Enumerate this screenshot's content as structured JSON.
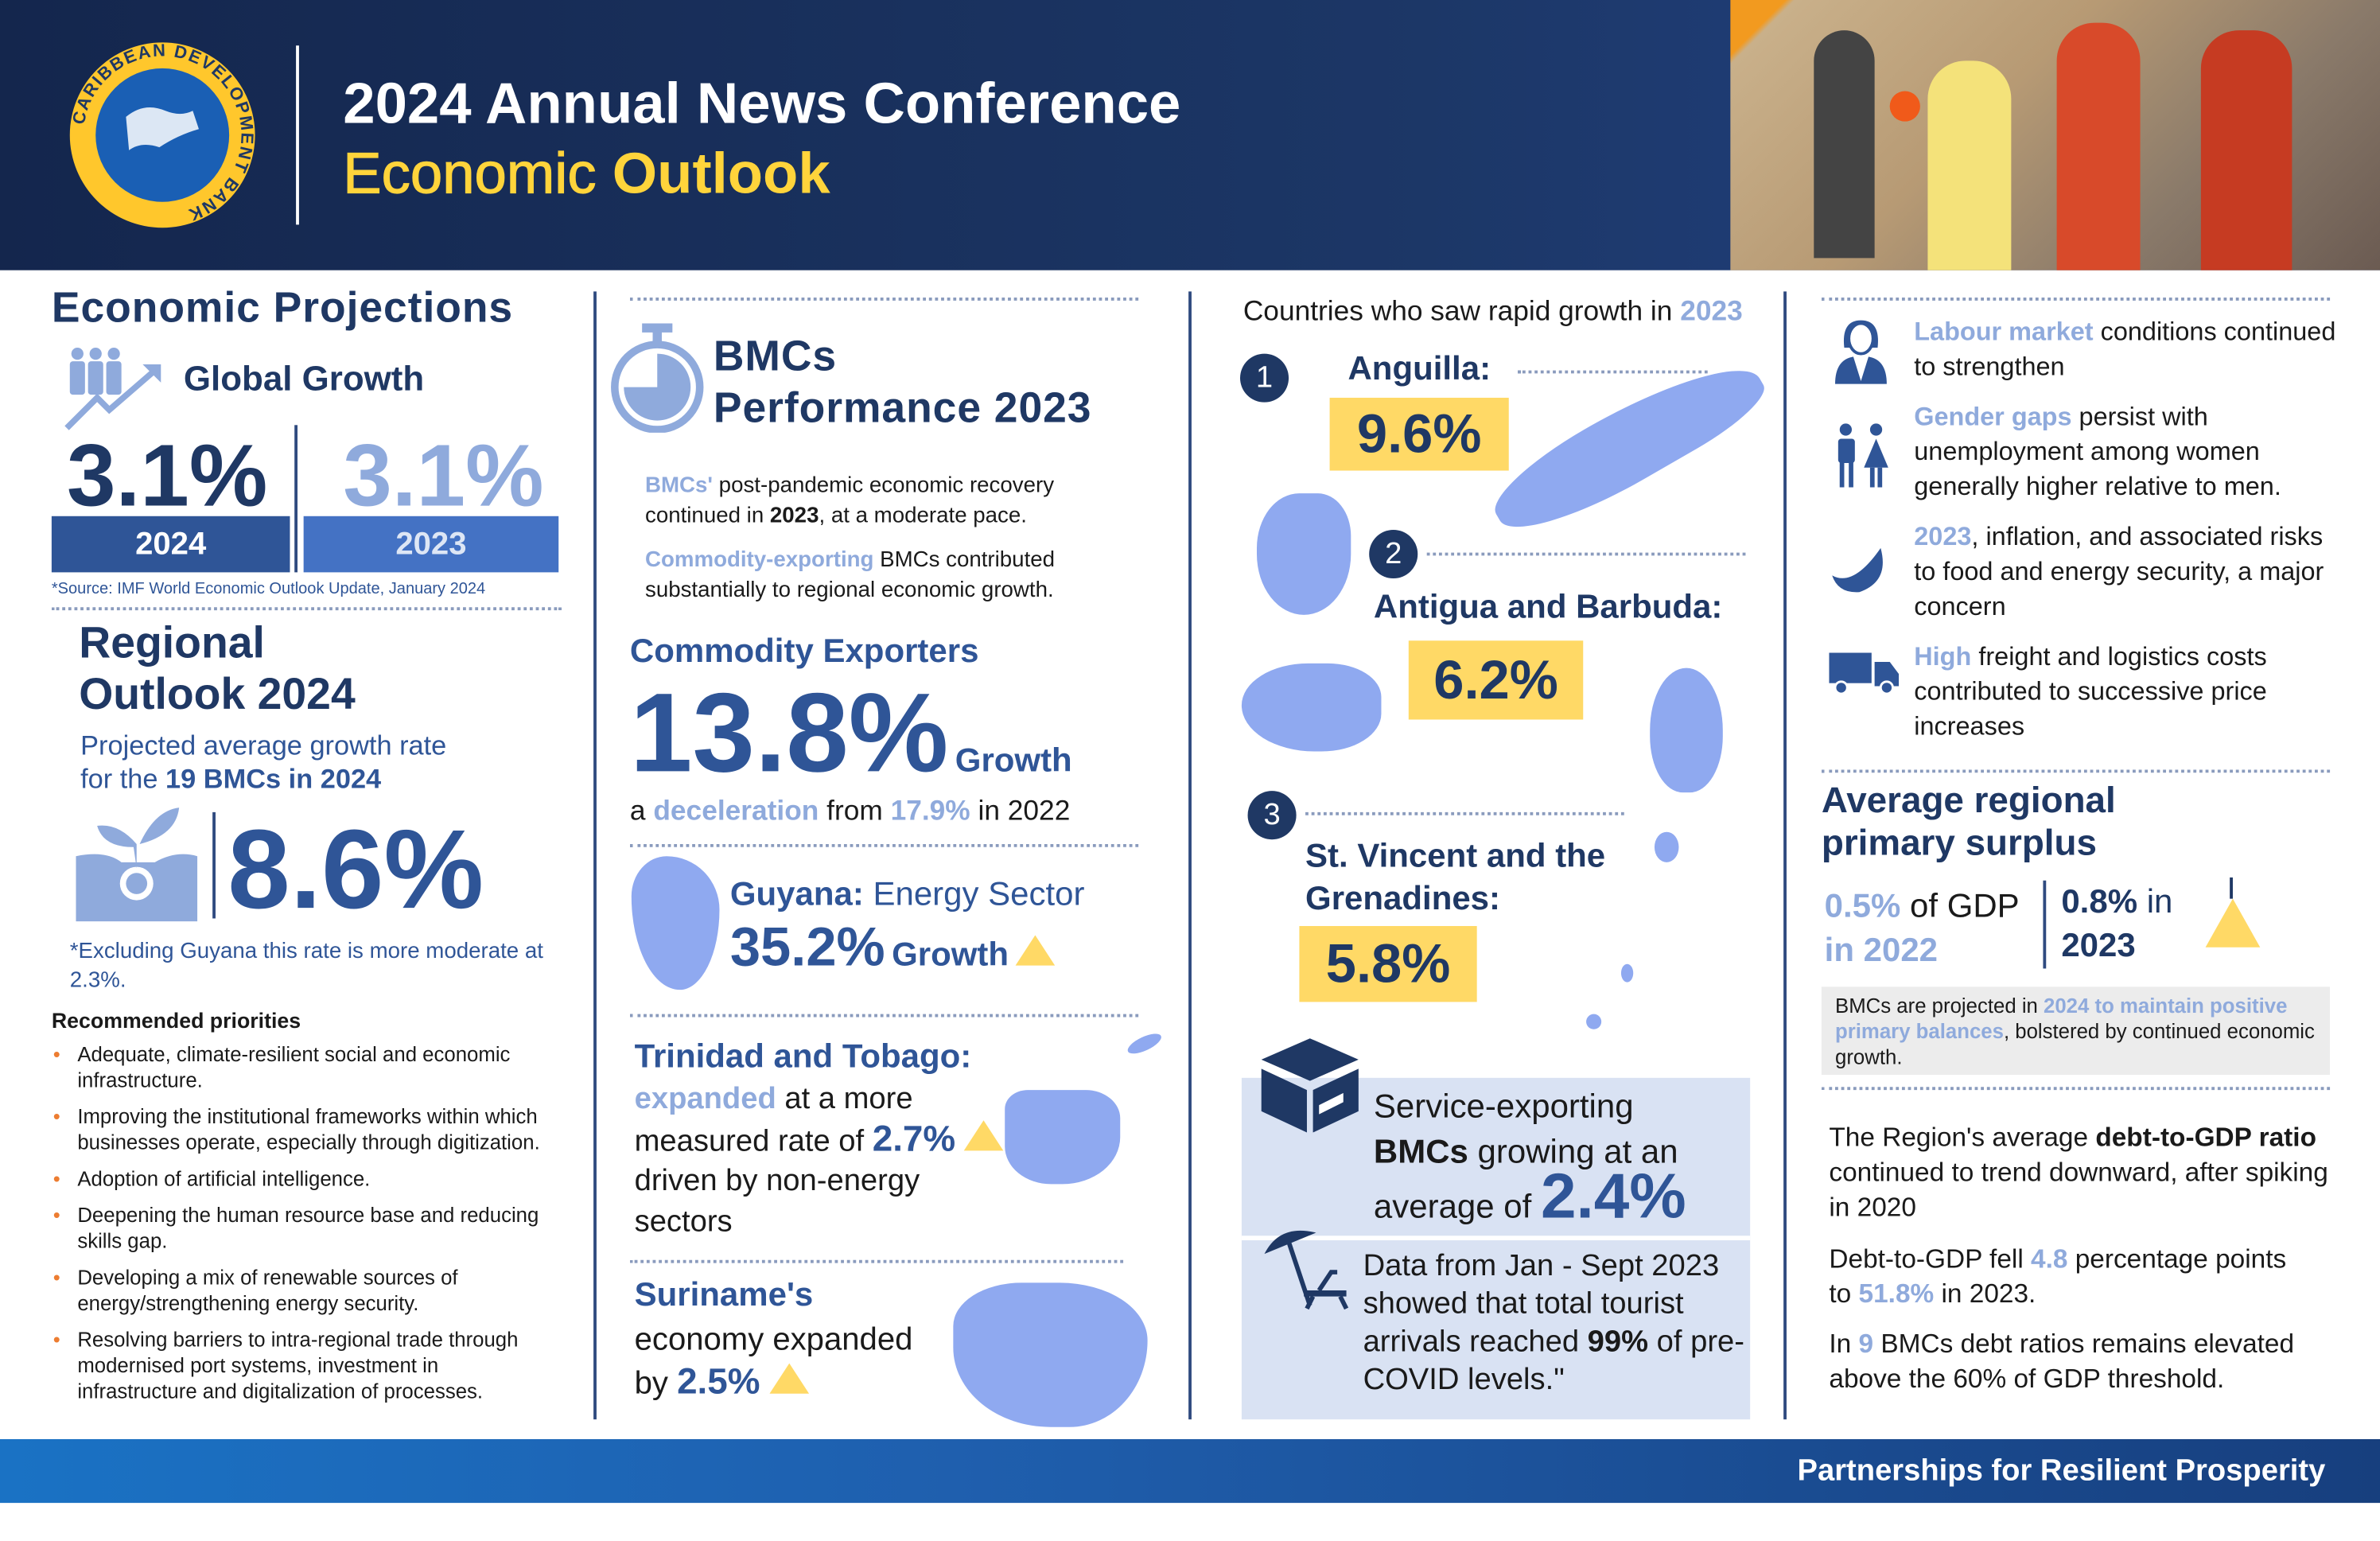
{
  "header": {
    "logo_text": "CARIBBEAN DEVELOPMENT BANK",
    "title": "2024 Annual News Conference",
    "subtitle_a": "Economic",
    "subtitle_b": "Outlook"
  },
  "colors": {
    "navy": "#1f3864",
    "mid_blue": "#2f5597",
    "light_blue": "#8faadc",
    "accent_yellow": "#ffd966",
    "bullet_orange": "#ed7d31"
  },
  "projections": {
    "title": "Economic Projections",
    "global_label": "Global Growth",
    "val_2024": "3.1%",
    "val_2023": "3.1%",
    "year_a": "2024",
    "year_b": "2023",
    "source": "*Source: IMF World Economic Outlook Update, January 2024"
  },
  "regional": {
    "title1": "Regional",
    "title2": "Outlook 2024",
    "desc1": "Projected average growth rate",
    "desc2a": "for the ",
    "desc2b": "19 BMCs in 2024",
    "value": "8.6%",
    "note": "*Excluding Guyana this rate is more moderate at 2.3%.",
    "priorities_title": "Recommended priorities",
    "priorities": [
      "Adequate, climate-resilient social and economic infrastructure.",
      "Improving the institutional frameworks within which businesses operate, especially through digitization.",
      "Adoption of artificial intelligence.",
      "Deepening the human resource base and reducing skills gap.",
      "Developing a mix of renewable sources of energy/strengthening energy security.",
      "Resolving barriers to intra-regional trade through modernised port systems, investment in infrastructure and digitalization of processes."
    ]
  },
  "bmcs": {
    "title1": "BMCs",
    "title2": "Performance 2023",
    "p1a": "BMCs'",
    "p1b": " post-pandemic economic recovery continued in ",
    "p1c": "2023",
    "p1d": ", at a moderate pace.",
    "p2a": "Commodity-exporting",
    "p2b": " BMCs contributed substantially to regional economic growth.",
    "commodity_title": "Commodity Exporters",
    "commodity_value": "13.8%",
    "growth": "Growth",
    "dec_a": "a ",
    "dec_b": "deceleration",
    "dec_c": " from ",
    "dec_d": "17.9%",
    "dec_e": " in 2022",
    "guyana_a": "Guyana:",
    "guyana_b": " Energy Sector",
    "guyana_value": "35.2%",
    "guyana_growth": "Growth",
    "tt_title": "Trinidad and Tobago:",
    "tt_a": "expanded",
    "tt_b": " at a more",
    "tt_c": "measured rate of ",
    "tt_value": "2.7%",
    "tt_d": "driven by non-energy",
    "tt_e": "sectors",
    "sur_title": "Suriname's",
    "sur_a": "economy expanded",
    "sur_b": "by ",
    "sur_value": "2.5%"
  },
  "rapid": {
    "title_a": "Countries who saw rapid growth in ",
    "title_b": "2023",
    "countries": [
      {
        "rank": "1",
        "name": "Anguilla:",
        "value": "9.6%"
      },
      {
        "rank": "2",
        "name": "Antigua and Barbuda:",
        "value": "6.2%"
      },
      {
        "rank": "3",
        "name": "St. Vincent and the Grenadines:",
        "value": "5.8%"
      }
    ],
    "svc_a": "Service-exporting",
    "svc_b": "BMCs",
    "svc_c": " growing at an",
    "svc_d": "average of ",
    "svc_value": "2.4%",
    "tour_a": "Data from Jan - Sept 2023 showed that total tourist arrivals reached ",
    "tour_b": "99%",
    "tour_c": " of pre-COVID levels.\""
  },
  "conditions": [
    {
      "icon": "woman-icon",
      "hl": "Labour market",
      "rest": " conditions continued to strengthen"
    },
    {
      "icon": "couple-icon",
      "hl": "Gender gaps",
      "rest": " persist with unemployment among women generally higher relative to men."
    },
    {
      "icon": "banana-icon",
      "hl": "2023",
      "rest": ", inflation, and associated risks to food and energy security, a major concern"
    },
    {
      "icon": "truck-icon",
      "hl": "High",
      "rest": " freight and logistics costs contributed to successive price increases"
    }
  ],
  "surplus": {
    "title": "Average regional primary surplus",
    "v2022": "0.5%",
    "t2022a": " of GDP",
    "t2022b": "in 2022",
    "v2023": "0.8%",
    "t2023a": " in",
    "t2023b": "2023",
    "note_a": "BMCs are projected in ",
    "note_b": "2024 to maintain positive primary balances",
    "note_c": ", bolstered by continued economic growth."
  },
  "debt": {
    "p1a": "The Region's average ",
    "p1b": "debt-to-GDP ratio",
    "p1c": " continued to trend downward, after spiking in 2020",
    "p2a": "Debt-to-GDP fell ",
    "p2b": "4.8",
    "p2c": " percentage points to ",
    "p2d": "51.8%",
    "p2e": " in 2023.",
    "p3a": "In ",
    "p3b": "9",
    "p3c": " BMCs debt ratios remains elevated above the 60% of GDP threshold."
  },
  "footer": {
    "tagline": "Partnerships for Resilient Prosperity"
  }
}
